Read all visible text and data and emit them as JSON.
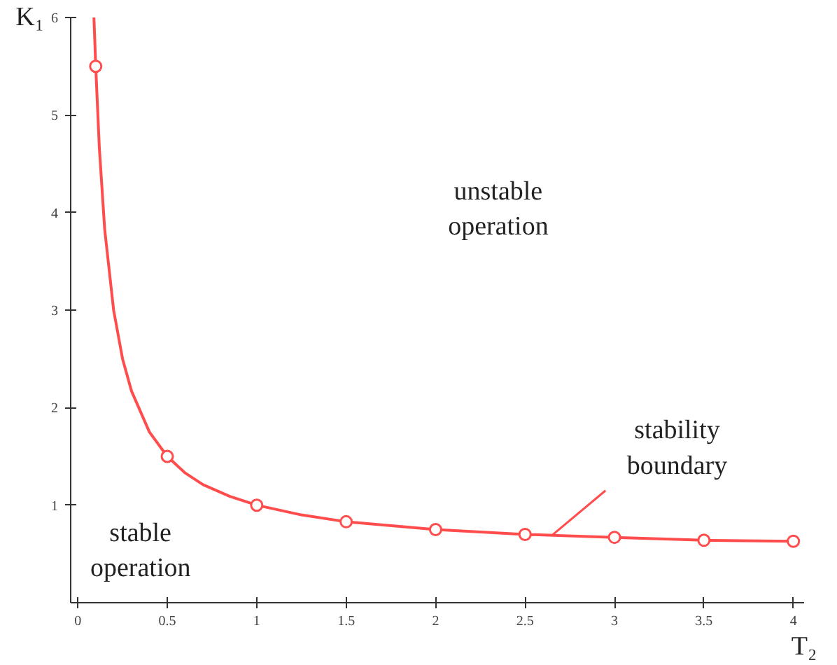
{
  "chart_data": {
    "type": "line",
    "xlabel": "T₂",
    "ylabel": "K₁",
    "xlim": [
      -0.04,
      4.06
    ],
    "ylim": [
      0,
      6
    ],
    "xticks": [
      0,
      0.5,
      1,
      1.5,
      2,
      2.5,
      3,
      3.5,
      4
    ],
    "yticks": [
      1,
      2,
      3,
      4,
      5,
      6
    ],
    "grid": false,
    "series": [
      {
        "color": "#ff4d4d",
        "marker": "none",
        "x": [
          0.09,
          0.1,
          0.12,
          0.15,
          0.2,
          0.25,
          0.3,
          0.4,
          0.5,
          0.6,
          0.7,
          0.85,
          1,
          1.25,
          1.5,
          2,
          2.5,
          3,
          3.5,
          4
        ],
        "values": [
          6.0,
          5.5,
          4.67,
          3.83,
          3.0,
          2.5,
          2.17,
          1.75,
          1.5,
          1.33,
          1.21,
          1.09,
          1.0,
          0.9,
          0.83,
          0.75,
          0.7,
          0.67,
          0.64,
          0.63
        ]
      },
      {
        "type": "scatter",
        "color": "#ff4d4d",
        "marker": "circle",
        "x": [
          0.1,
          0.5,
          1,
          1.5,
          2,
          2.5,
          3,
          3.5,
          4
        ],
        "values": [
          5.5,
          1.5,
          1.0,
          0.83,
          0.75,
          0.7,
          0.67,
          0.64,
          0.63
        ]
      }
    ],
    "annotations": [
      "unstable\noperation",
      "stable\noperation",
      {
        "text": "stability\nboundary",
        "x": 2.65,
        "y": 0.69
      }
    ]
  }
}
